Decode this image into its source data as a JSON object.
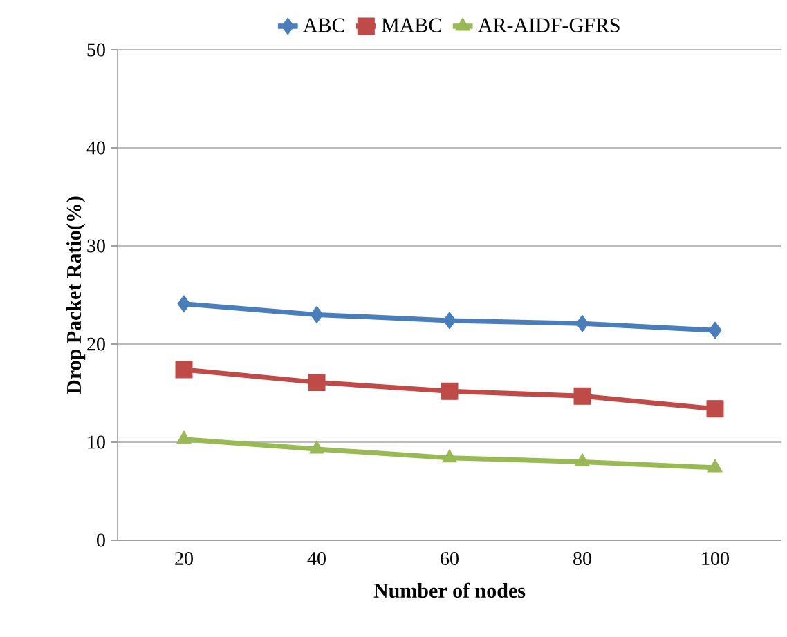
{
  "chart_data": {
    "type": "line",
    "xlabel": "Number of nodes",
    "ylabel": "Drop Packet Ratio(%)",
    "categories": [
      "20",
      "40",
      "60",
      "80",
      "100"
    ],
    "series": [
      {
        "name": "ABC",
        "color": "#4a7ebb",
        "marker": "diamond",
        "values": [
          24.1,
          23.0,
          22.4,
          22.1,
          21.4
        ]
      },
      {
        "name": "MABC",
        "color": "#be4b48",
        "marker": "square",
        "values": [
          17.4,
          16.1,
          15.2,
          14.7,
          13.4
        ]
      },
      {
        "name": "AR-AIDF-GFRS",
        "color": "#98b954",
        "marker": "triangle",
        "values": [
          10.3,
          9.3,
          8.4,
          8.0,
          7.4
        ]
      }
    ],
    "ylim": [
      0,
      50
    ],
    "yticks": [
      0,
      10,
      20,
      30,
      40,
      50
    ],
    "grid": "y",
    "legend": "top"
  }
}
